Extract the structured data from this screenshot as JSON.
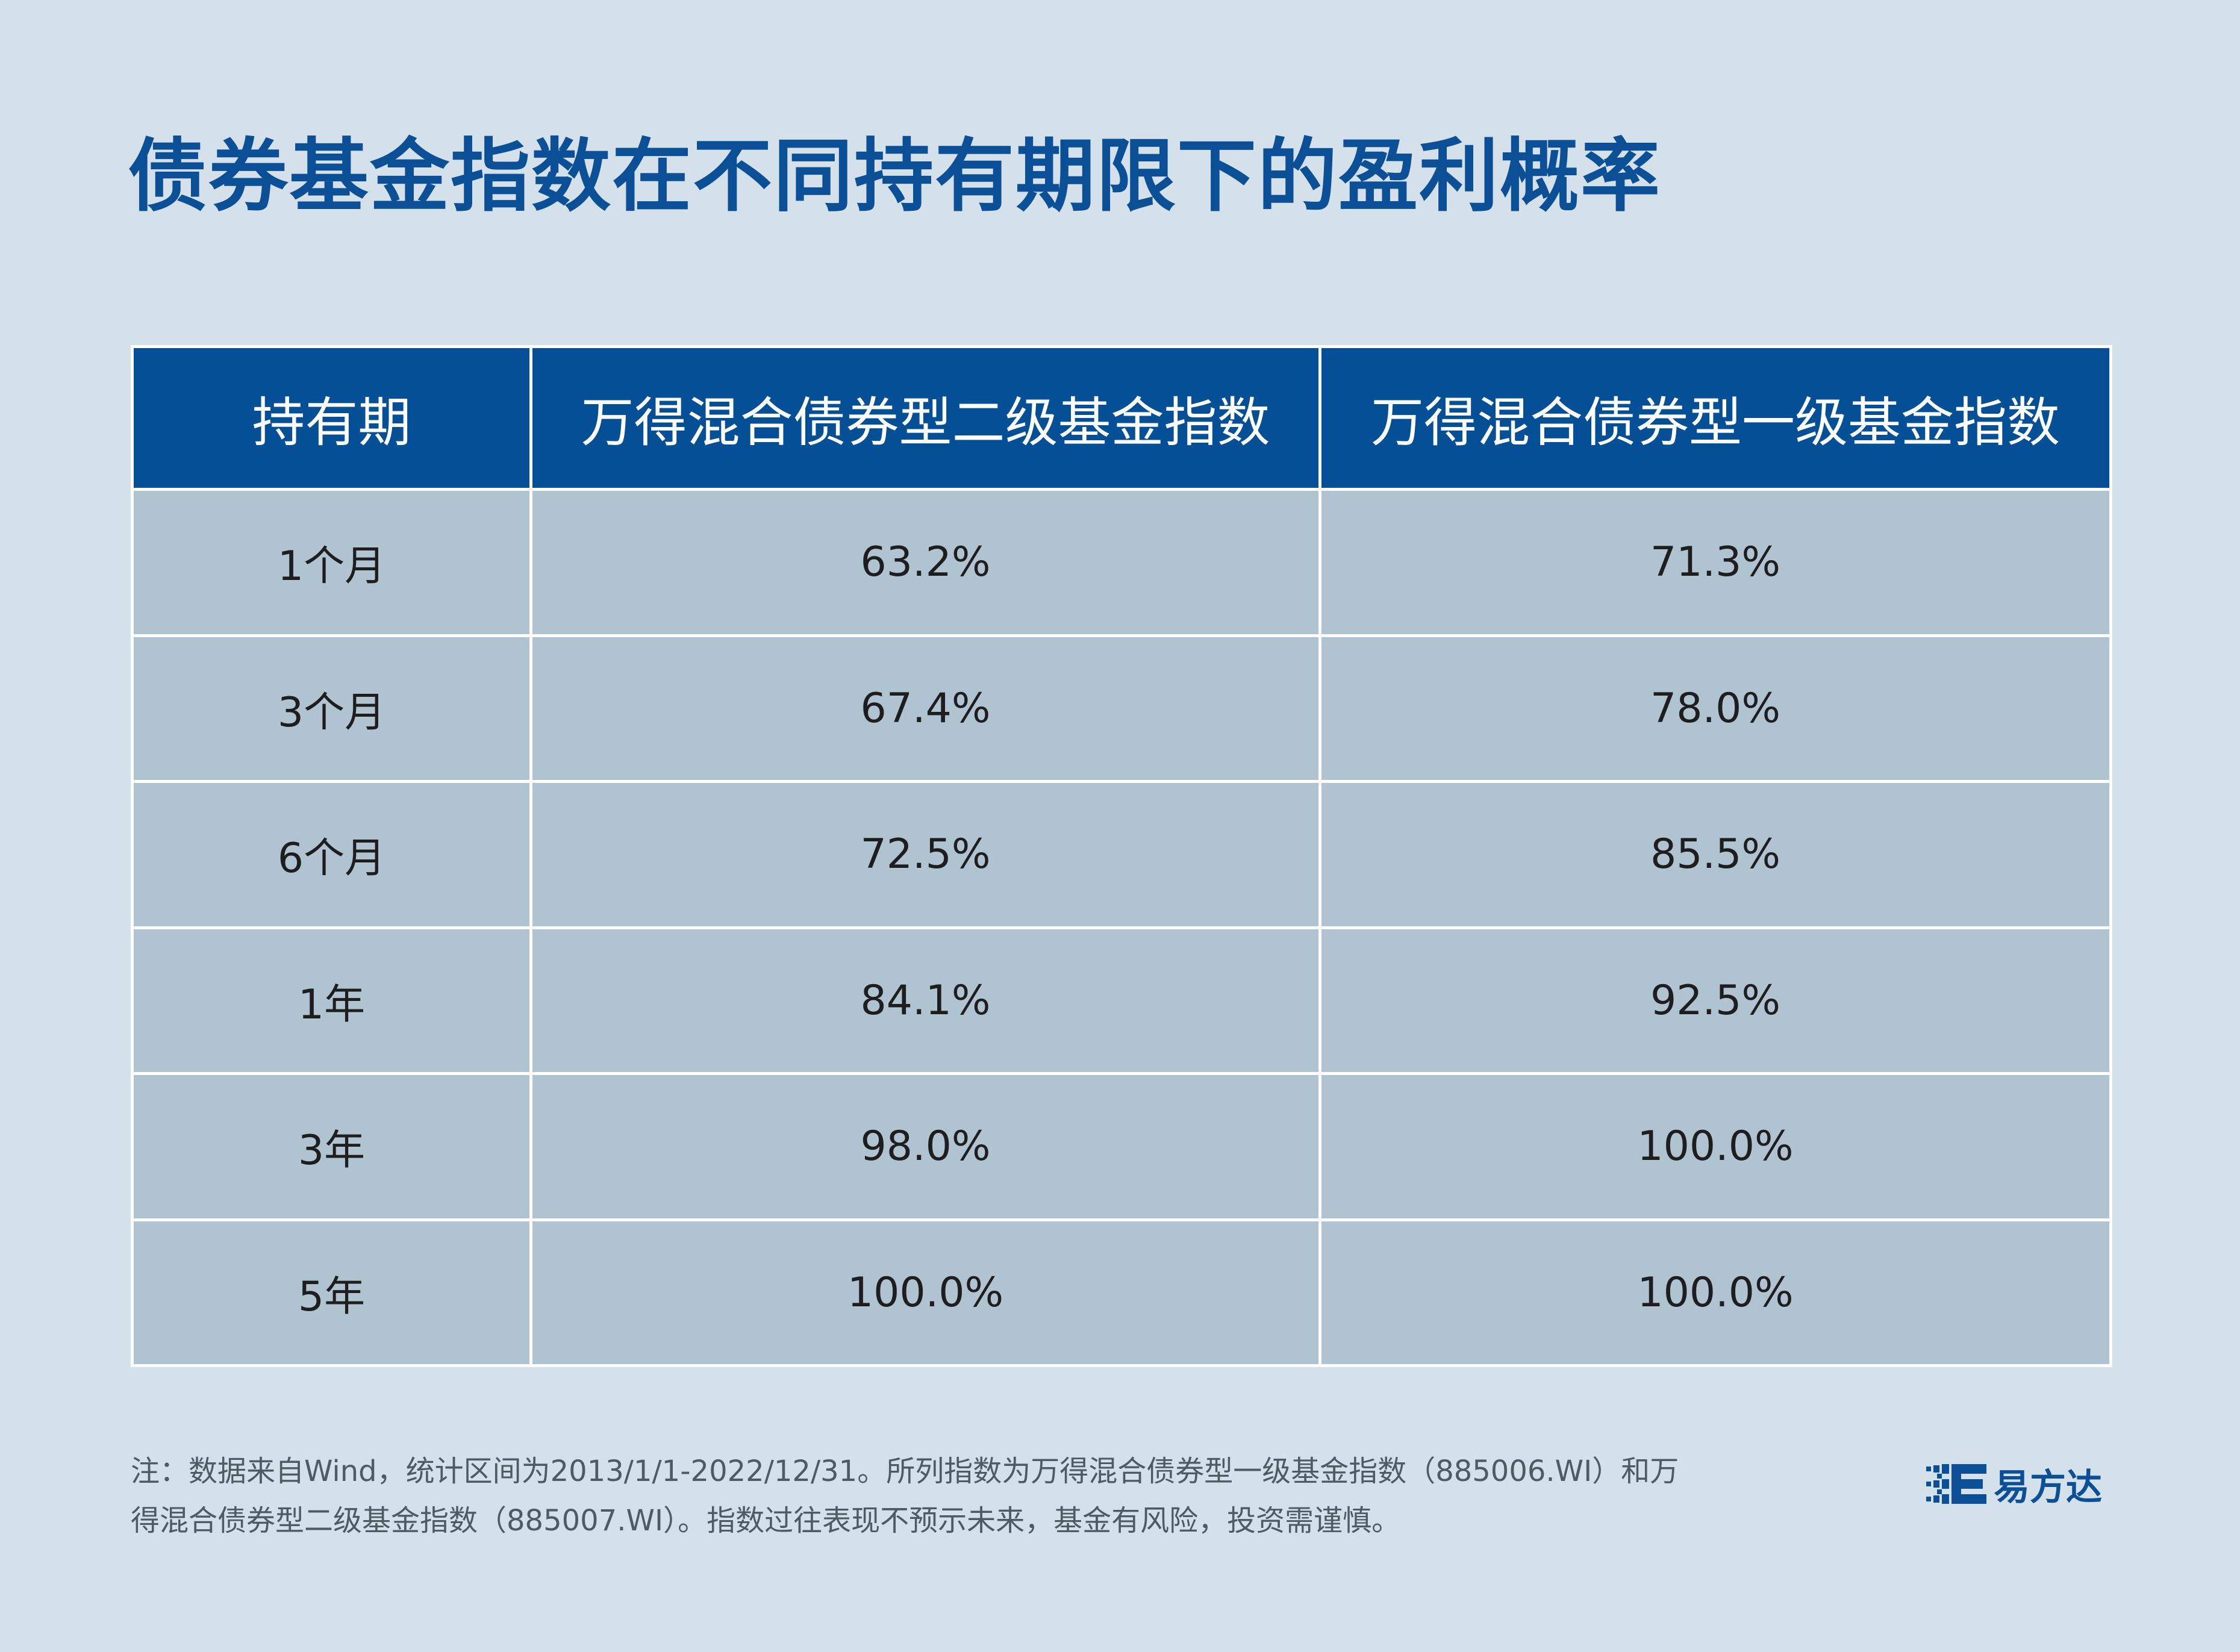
{
  "title": "债券基金指数在不同持有期限下的盈利概率",
  "chart_data": {
    "type": "table",
    "title": "债券基金指数在不同持有期限下的盈利概率",
    "columns": [
      "持有期",
      "万得混合债券型二级基金指数",
      "万得混合债券型一级基金指数"
    ],
    "rows": [
      {
        "period": "1个月",
        "level2": "63.2%",
        "level1": "71.3%"
      },
      {
        "period": "3个月",
        "level2": "67.4%",
        "level1": "78.0%"
      },
      {
        "period": "6个月",
        "level2": "72.5%",
        "level1": "85.5%"
      },
      {
        "period": "1年",
        "level2": "84.1%",
        "level1": "92.5%"
      },
      {
        "period": "3年",
        "level2": "98.0%",
        "level1": "100.0%"
      },
      {
        "period": "5年",
        "level2": "100.0%",
        "level1": "100.0%"
      }
    ]
  },
  "footnote": {
    "line1": "注：数据来自Wind，统计区间为2013/1/1-2022/12/31。所列指数为万得混合债券型一级基金指数（885006.WI）和万",
    "line2": "得混合债券型二级基金指数（885007.WI）。指数过往表现不预示未来，基金有风险，投资需谨慎。"
  },
  "logo": {
    "text": "易方达",
    "icon": "e-fund-logo-icon"
  },
  "colors": {
    "background": "#d4e1ea",
    "title": "#0b4f96",
    "header": "#044f95",
    "cell": "#afc4d0"
  }
}
